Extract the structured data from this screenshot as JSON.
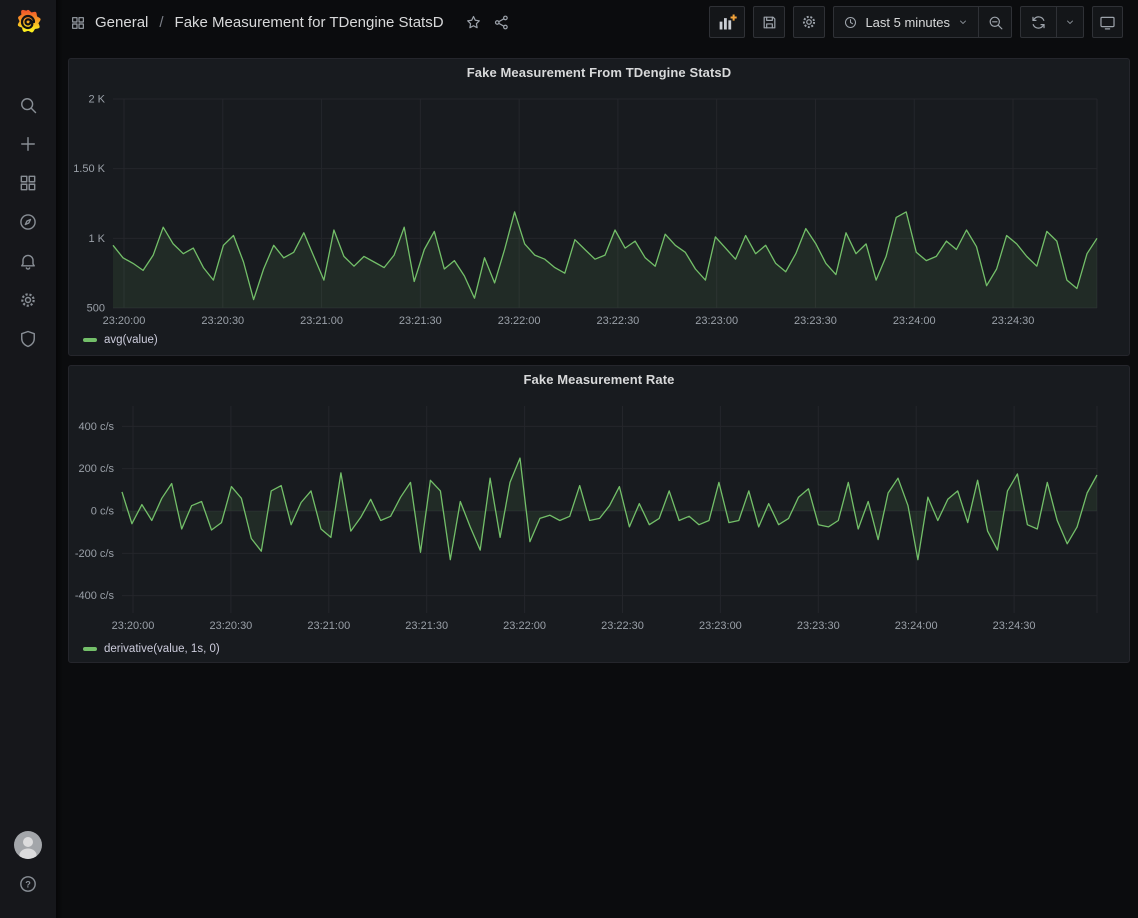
{
  "header": {
    "nav_root": "General",
    "separator": "/",
    "title": "Fake Measurement for TDengine StatsD",
    "toolbar": {
      "time_range_label": "Last 5 minutes"
    }
  },
  "sidebar": {
    "icon_names": [
      "grafana-logo",
      "search",
      "create",
      "dashboards",
      "explore",
      "alerting",
      "configuration",
      "server-admin",
      "avatar",
      "help"
    ]
  },
  "colors": {
    "series_green": "#73BF69",
    "accent_orange": "#F3A33A",
    "panel_bg": "#181b1f",
    "page_bg": "#0b0c0e"
  },
  "chart_data": [
    {
      "type": "line",
      "title": "Fake Measurement From TDengine StatsD",
      "xlabel": "",
      "ylabel": "",
      "x_start": "23:20:00",
      "x_step_seconds": 3,
      "grid": true,
      "legend_position": "bottom-left",
      "fill": "to-bottom",
      "ylim": [
        500,
        2000
      ],
      "y_ticks": [
        {
          "v": 2000,
          "label": "2 K"
        },
        {
          "v": 1500,
          "label": "1.50 K"
        },
        {
          "v": 1000,
          "label": "1 K"
        },
        {
          "v": 500,
          "label": "500"
        }
      ],
      "x_tick_labels": [
        "23:20:00",
        "23:20:30",
        "23:21:00",
        "23:21:30",
        "23:22:00",
        "23:22:30",
        "23:23:00",
        "23:23:30",
        "23:24:00",
        "23:24:30"
      ],
      "series": [
        {
          "name": "avg(value)",
          "color": "#73BF69",
          "fill_color": "rgba(115,191,105,0.10)",
          "values": [
            950,
            860,
            820,
            770,
            880,
            1080,
            960,
            890,
            930,
            790,
            700,
            950,
            1020,
            830,
            560,
            780,
            950,
            860,
            900,
            1040,
            870,
            700,
            1060,
            870,
            800,
            870,
            830,
            790,
            880,
            1080,
            690,
            920,
            1050,
            780,
            840,
            730,
            570,
            860,
            680,
            920,
            1190,
            960,
            880,
            850,
            790,
            750,
            990,
            920,
            850,
            880,
            1060,
            930,
            980,
            860,
            800,
            1030,
            950,
            900,
            780,
            700,
            1010,
            930,
            850,
            1020,
            890,
            950,
            820,
            760,
            890,
            1070,
            960,
            820,
            740,
            1040,
            890,
            960,
            700,
            870,
            1150,
            1190,
            900,
            840,
            870,
            980,
            920,
            1060,
            940,
            660,
            780,
            1020,
            960,
            870,
            800,
            1050,
            980,
            700,
            640,
            890,
            1000
          ]
        }
      ]
    },
    {
      "type": "line",
      "title": "Fake Measurement Rate",
      "xlabel": "",
      "ylabel": "",
      "x_start": "23:20:00",
      "x_step_seconds": 3,
      "grid": true,
      "legend_position": "bottom-left",
      "fill": "to-zero",
      "ylim": [
        -482,
        496
      ],
      "y_ticks": [
        {
          "v": 400,
          "label": "400 c/s"
        },
        {
          "v": 200,
          "label": "200 c/s"
        },
        {
          "v": 0,
          "label": "0 c/s"
        },
        {
          "v": -200,
          "label": "-200 c/s"
        },
        {
          "v": -400,
          "label": "-400 c/s"
        }
      ],
      "x_tick_labels": [
        "23:20:00",
        "23:20:30",
        "23:21:00",
        "23:21:30",
        "23:22:00",
        "23:22:30",
        "23:23:00",
        "23:23:30",
        "23:24:00",
        "23:24:30"
      ],
      "series": [
        {
          "name": "derivative(value, 1s, 0)",
          "color": "#73BF69",
          "fill_color": "rgba(115,191,105,0.10)",
          "values": [
            90,
            -60,
            30,
            -45,
            60,
            130,
            -85,
            25,
            45,
            -90,
            -55,
            115,
            60,
            -130,
            -190,
            95,
            120,
            -65,
            40,
            95,
            -85,
            -125,
            180,
            -95,
            -30,
            55,
            -45,
            -25,
            65,
            135,
            -195,
            145,
            95,
            -230,
            45,
            -75,
            -185,
            155,
            -125,
            135,
            250,
            -145,
            -35,
            -20,
            -45,
            -25,
            120,
            -45,
            -35,
            25,
            115,
            -75,
            35,
            -65,
            -35,
            95,
            -45,
            -25,
            -65,
            -45,
            135,
            -55,
            -45,
            95,
            -75,
            35,
            -65,
            -35,
            65,
            105,
            -65,
            -75,
            -45,
            135,
            -85,
            45,
            -135,
            85,
            155,
            25,
            -230,
            65,
            -45,
            55,
            95,
            -55,
            145,
            -95,
            -185,
            95,
            175,
            -65,
            -85,
            135,
            -45,
            -155,
            -75,
            85,
            170
          ]
        }
      ]
    }
  ]
}
